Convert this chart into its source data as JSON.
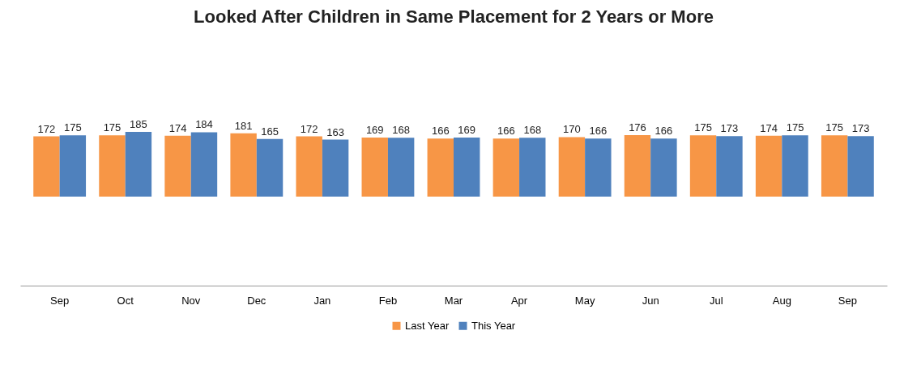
{
  "chart_data": {
    "type": "bar",
    "title": "Looked After Children in Same Placement for 2 Years or More",
    "categories": [
      "Sep",
      "Oct",
      "Nov",
      "Dec",
      "Jan",
      "Feb",
      "Mar",
      "Apr",
      "May",
      "Jun",
      "Jul",
      "Aug",
      "Sep"
    ],
    "series": [
      {
        "name": "Last Year",
        "color": "#f79646",
        "values": [
          172,
          175,
          174,
          181,
          172,
          169,
          166,
          166,
          170,
          176,
          175,
          174,
          175
        ]
      },
      {
        "name": "This Year",
        "color": "#4f81bd",
        "values": [
          175,
          185,
          184,
          165,
          163,
          168,
          169,
          168,
          166,
          166,
          173,
          175,
          173
        ]
      }
    ],
    "data_labels": true,
    "legend": "bottom",
    "grid": false
  }
}
